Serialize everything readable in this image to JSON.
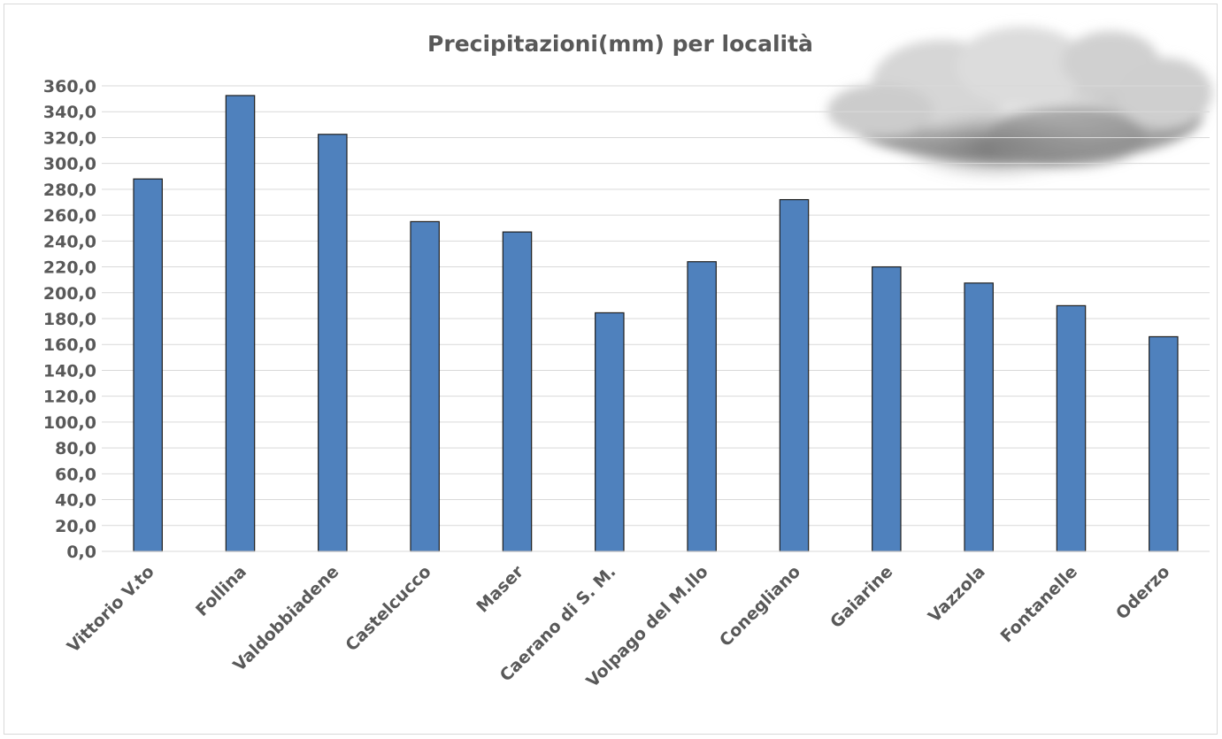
{
  "chart_data": {
    "type": "bar",
    "title": "Precipitazioni(mm) per località",
    "xlabel": "",
    "ylabel": "",
    "categories": [
      "Vittorio V.to",
      "Follina",
      "Valdobbiadene",
      "Castelcucco",
      "Maser",
      "Caerano di S. M.",
      "Volpago del M.llo",
      "Conegliano",
      "Gaiarine",
      "Vazzola",
      "Fontanelle",
      "Oderzo"
    ],
    "values": [
      288.0,
      352.5,
      322.5,
      255.0,
      247.0,
      184.5,
      224.0,
      272.0,
      220.0,
      207.5,
      190.0,
      166.0
    ],
    "ylim": [
      0,
      360
    ],
    "ytick_step": 20,
    "ytick_labels": [
      "0,0",
      "20,0",
      "40,0",
      "60,0",
      "80,0",
      "100,0",
      "120,0",
      "140,0",
      "160,0",
      "180,0",
      "200,0",
      "220,0",
      "240,0",
      "260,0",
      "280,0",
      "300,0",
      "320,0",
      "340,0",
      "360,0"
    ],
    "grid": true,
    "legend": "none",
    "bar_color": "#4f81bd",
    "bar_edge_color": "#1f1f1f",
    "grid_color": "#d9d9d9",
    "text_color": "#595959",
    "decoration": "cloud-image"
  }
}
